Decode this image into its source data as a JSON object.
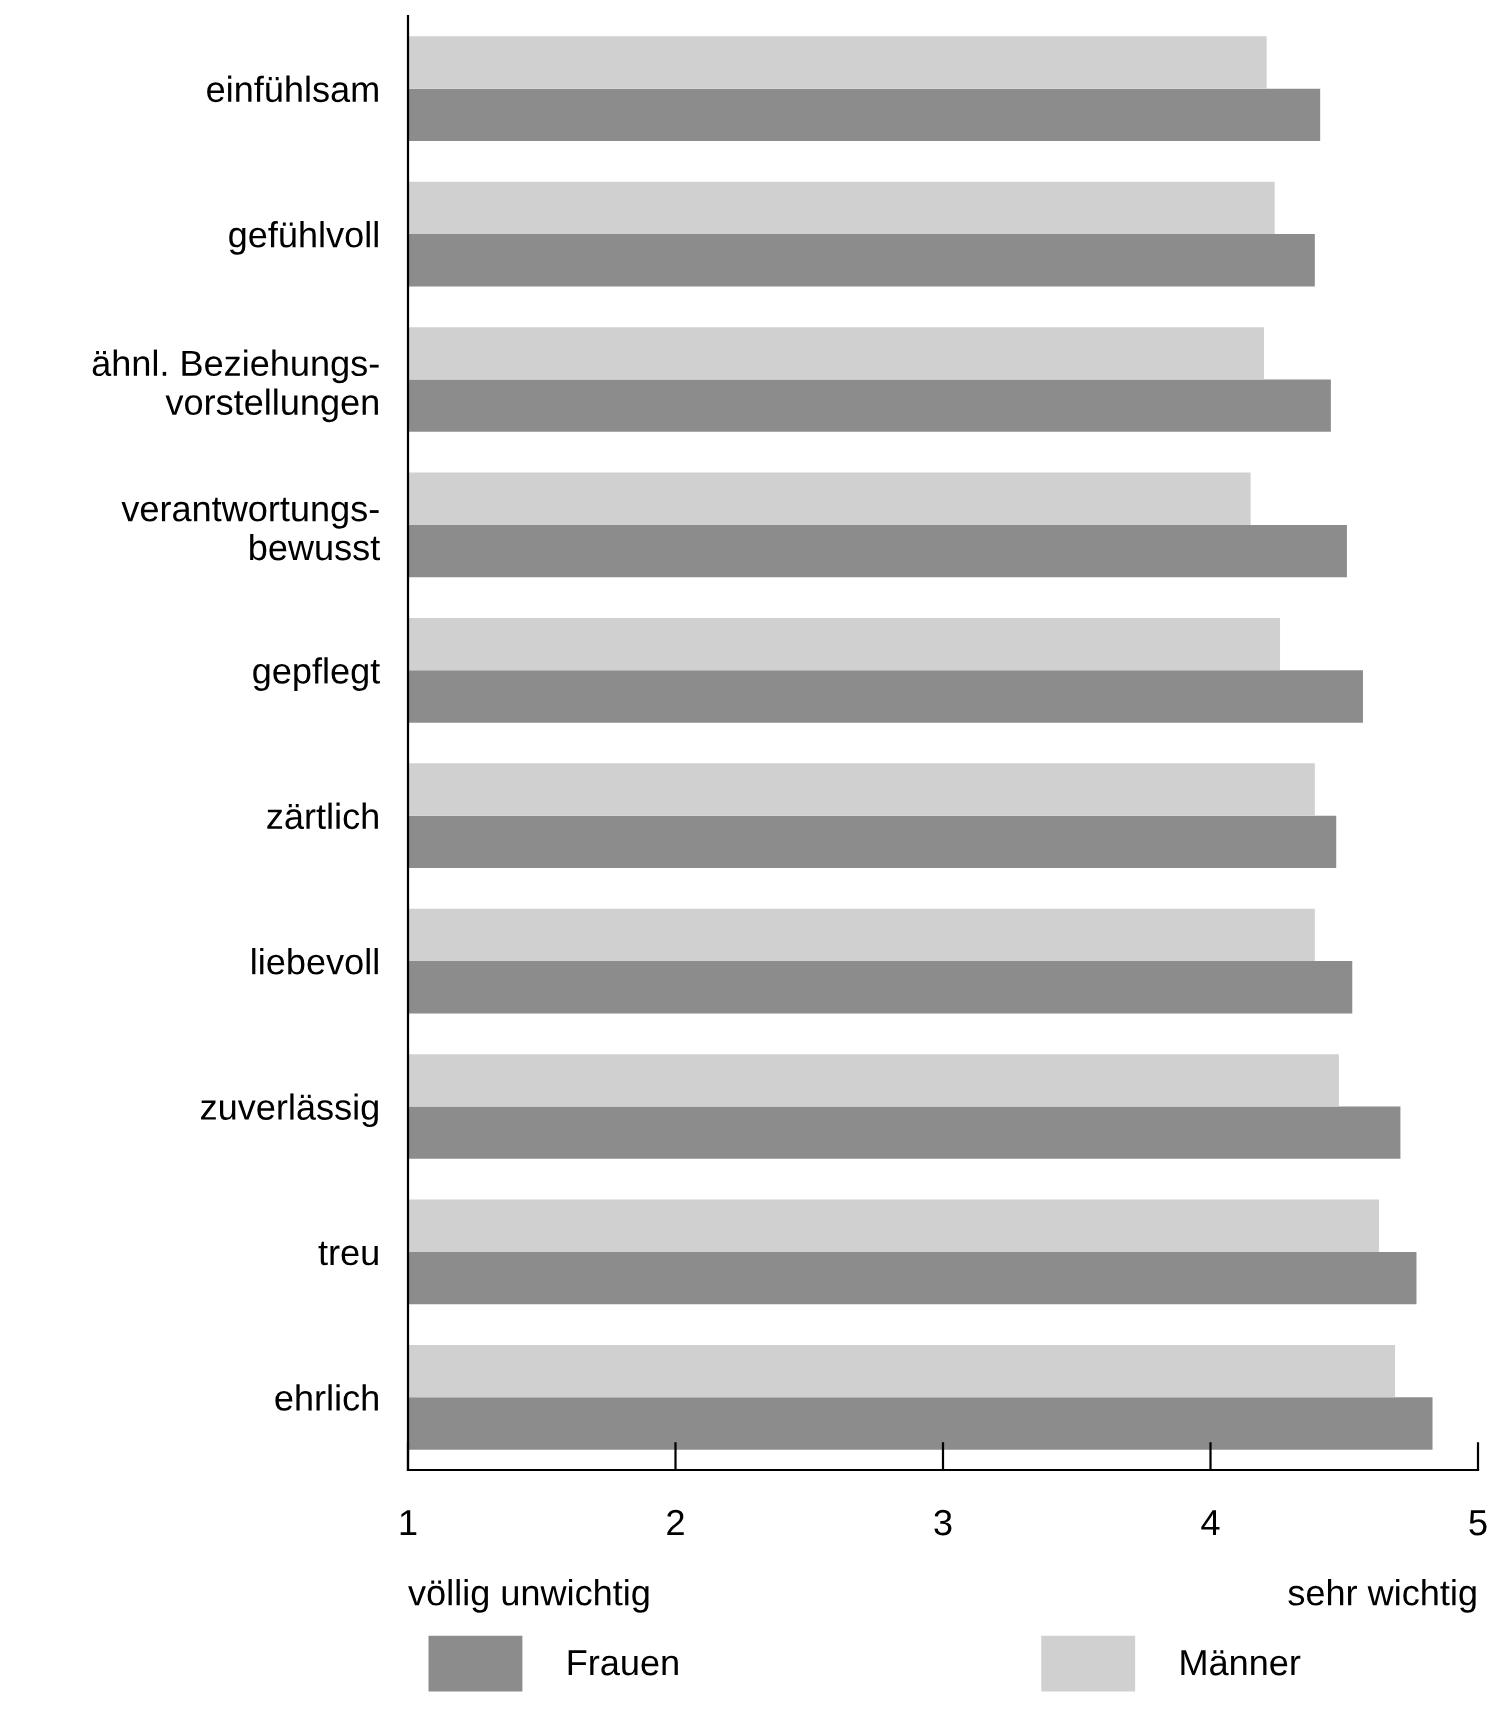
{
  "chart_data": {
    "type": "bar",
    "orientation": "horizontal",
    "categories": [
      "einfühlsam",
      "gefühlvoll",
      "ähnl. Beziehungs-\nvorstellungen",
      "verantwortungs-\nbewusst",
      "gepflegt",
      "zärtlich",
      "liebevoll",
      "zuverlässig",
      "treu",
      "ehrlich"
    ],
    "series": [
      {
        "name": "Frauen",
        "color": "#8c8c8c",
        "values": [
          4.41,
          4.39,
          4.45,
          4.51,
          4.57,
          4.47,
          4.53,
          4.71,
          4.77,
          4.83
        ]
      },
      {
        "name": "Männer",
        "color": "#d0d0d0",
        "values": [
          4.21,
          4.24,
          4.2,
          4.15,
          4.26,
          4.39,
          4.39,
          4.48,
          4.63,
          4.69
        ]
      }
    ],
    "xlim": [
      1,
      5
    ],
    "xticks": [
      1,
      2,
      3,
      4,
      5
    ],
    "annotations": [
      "völlig unwichtig",
      "sehr wichtig"
    ],
    "grid": false,
    "legend": "bottom"
  }
}
